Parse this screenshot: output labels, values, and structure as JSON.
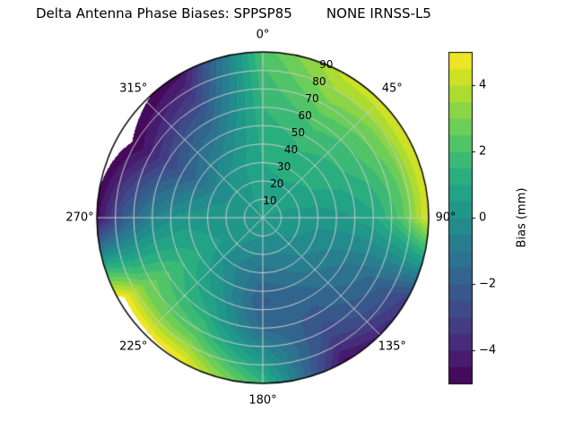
{
  "title": "Delta Antenna Phase Biases: SPPSP85        NONE IRNSS-L5",
  "chart_data": {
    "type": "heatmap",
    "projection": "polar",
    "description": "Filled contour sky plot of antenna phase bias vs azimuth (clockwise from top) and radial coordinate 0-90",
    "azimuth_ticks": [
      {
        "angle": 0,
        "label": "0°"
      },
      {
        "angle": 45,
        "label": "45°"
      },
      {
        "angle": 90,
        "label": "90°"
      },
      {
        "angle": 135,
        "label": "135°"
      },
      {
        "angle": 180,
        "label": "180°"
      },
      {
        "angle": 225,
        "label": "225°"
      },
      {
        "angle": 270,
        "label": "270°"
      },
      {
        "angle": 315,
        "label": "315°"
      }
    ],
    "radial_ticks": [
      {
        "value": 10,
        "label": "10"
      },
      {
        "value": 20,
        "label": "20"
      },
      {
        "value": 30,
        "label": "30"
      },
      {
        "value": 40,
        "label": "40"
      },
      {
        "value": 50,
        "label": "50"
      },
      {
        "value": 60,
        "label": "60"
      },
      {
        "value": 70,
        "label": "70"
      },
      {
        "value": 80,
        "label": "80"
      },
      {
        "value": 90,
        "label": "90"
      }
    ],
    "radial_tick_angle_deg": 22.5,
    "radial_max": 90,
    "levels_step_mm": 0.5,
    "value_range_mm": [
      -5,
      5
    ],
    "grid": {
      "azimuth_deg": [
        0,
        30,
        60,
        90,
        120,
        150,
        180,
        210,
        240,
        270,
        300,
        330
      ],
      "radius": [
        0,
        15,
        30,
        45,
        60,
        75,
        90
      ],
      "bias_mm": [
        [
          0.5,
          0.8,
          1.0,
          1.2,
          1.5,
          1.8,
          2.2
        ],
        [
          0.5,
          0.8,
          1.2,
          1.6,
          2.2,
          3.2,
          4.2
        ],
        [
          0.5,
          0.6,
          1.0,
          1.3,
          1.9,
          2.8,
          4.6
        ],
        [
          0.5,
          0.3,
          0.2,
          0.4,
          0.9,
          2.2,
          4.6
        ],
        [
          0.5,
          0.2,
          -0.3,
          -0.8,
          -1.3,
          -2.0,
          -3.2
        ],
        [
          0.5,
          -0.2,
          -0.8,
          -1.6,
          -2.2,
          -3.0,
          -4.7
        ],
        [
          0.5,
          -0.3,
          -1.3,
          -2.1,
          -1.6,
          0.0,
          1.6
        ],
        [
          0.5,
          0.0,
          -0.5,
          0.1,
          1.1,
          2.6,
          5.0
        ],
        [
          0.5,
          0.3,
          0.6,
          1.3,
          2.1,
          3.0,
          5.6
        ],
        [
          0.5,
          0.4,
          0.3,
          0.2,
          -0.6,
          -2.1,
          -4.7
        ],
        [
          0.5,
          0.2,
          -0.5,
          -1.8,
          -3.0,
          -4.5,
          -5.6
        ],
        [
          0.5,
          0.4,
          0.2,
          -0.6,
          -1.8,
          -3.2,
          -4.6
        ]
      ]
    },
    "colormap": {
      "name": "viridis",
      "stops": [
        [
          0.0,
          "#440154"
        ],
        [
          0.1,
          "#482475"
        ],
        [
          0.2,
          "#414487"
        ],
        [
          0.3,
          "#355f8d"
        ],
        [
          0.4,
          "#2a788e"
        ],
        [
          0.5,
          "#21918c"
        ],
        [
          0.6,
          "#22a884"
        ],
        [
          0.7,
          "#44bf70"
        ],
        [
          0.8,
          "#7ad151"
        ],
        [
          0.9,
          "#bddf26"
        ],
        [
          1.0,
          "#fde725"
        ]
      ]
    },
    "grid_line_color": "#cccccc",
    "outline_color": "#000000",
    "colorbar": {
      "label": "Bias (mm)",
      "min": -5,
      "max": 5,
      "ticks": [
        {
          "value": 4,
          "label": "4"
        },
        {
          "value": 2,
          "label": "2"
        },
        {
          "value": 0,
          "label": "0"
        },
        {
          "value": -2,
          "label": "−2"
        },
        {
          "value": -4,
          "label": "−4"
        }
      ]
    },
    "layout": {
      "legend": "none",
      "grid": "on",
      "colorbar_position": "right"
    }
  }
}
